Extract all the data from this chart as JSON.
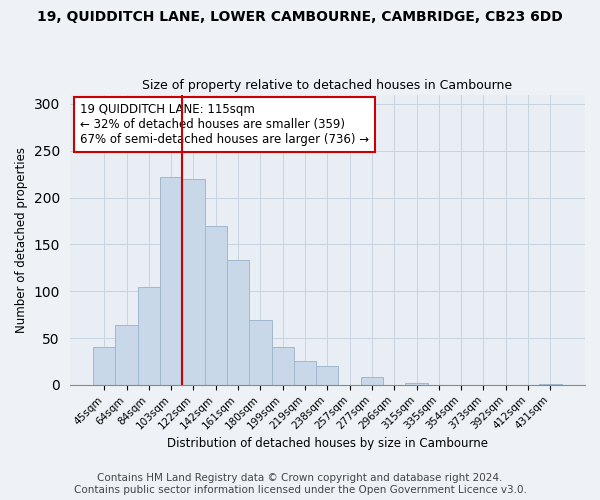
{
  "title": "19, QUIDDITCH LANE, LOWER CAMBOURNE, CAMBRIDGE, CB23 6DD",
  "subtitle": "Size of property relative to detached houses in Cambourne",
  "xlabel": "Distribution of detached houses by size in Cambourne",
  "ylabel": "Number of detached properties",
  "bar_labels": [
    "45sqm",
    "64sqm",
    "84sqm",
    "103sqm",
    "122sqm",
    "142sqm",
    "161sqm",
    "180sqm",
    "199sqm",
    "219sqm",
    "238sqm",
    "257sqm",
    "277sqm",
    "296sqm",
    "315sqm",
    "335sqm",
    "354sqm",
    "373sqm",
    "392sqm",
    "412sqm",
    "431sqm"
  ],
  "bar_values": [
    40,
    64,
    104,
    222,
    220,
    170,
    133,
    69,
    40,
    25,
    20,
    0,
    8,
    0,
    2,
    0,
    0,
    0,
    0,
    0,
    1
  ],
  "bar_color": "#c8d8e8",
  "bar_edge_color": "#a0b8d0",
  "vline_x_idx": 4,
  "vline_color": "#cc0000",
  "ylim": [
    0,
    310
  ],
  "annotation_box_text": "19 QUIDDITCH LANE: 115sqm\n← 32% of detached houses are smaller (359)\n67% of semi-detached houses are larger (736) →",
  "footer_line1": "Contains HM Land Registry data © Crown copyright and database right 2024.",
  "footer_line2": "Contains public sector information licensed under the Open Government Licence v3.0.",
  "background_color": "#eef2f6",
  "plot_background_color": "#e8eef4",
  "grid_color": "#c8d4e0",
  "title_fontsize": 10,
  "subtitle_fontsize": 9,
  "axis_fontsize": 8.5,
  "tick_fontsize": 7.5,
  "footer_fontsize": 7.5,
  "ann_fontsize": 8.5
}
